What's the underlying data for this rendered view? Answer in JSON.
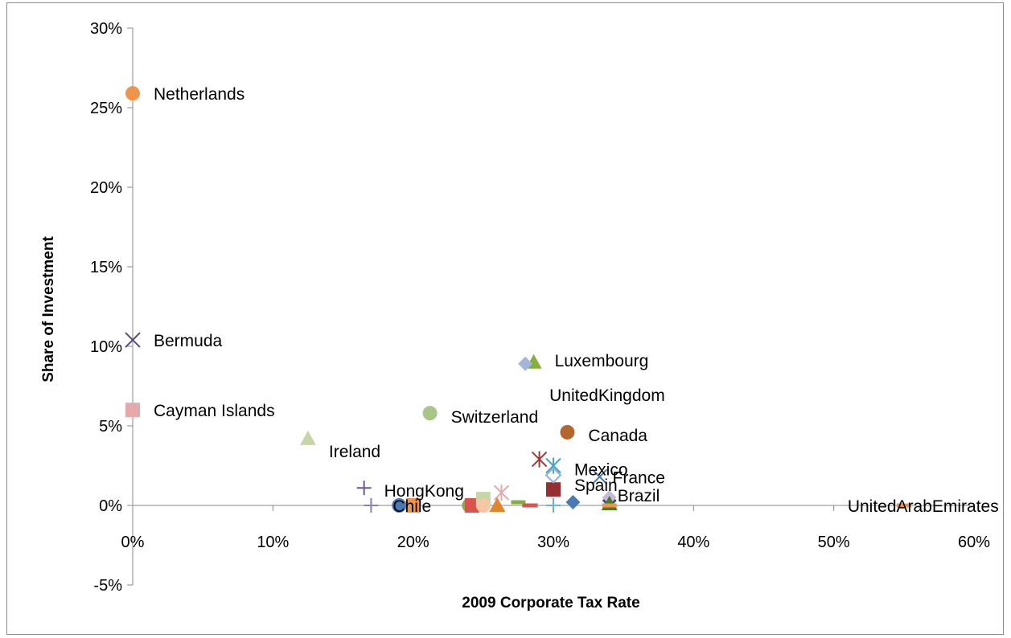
{
  "chart_data": {
    "type": "scatter",
    "title": "",
    "xlabel": "2009 Corporate Tax Rate",
    "ylabel": "Share of Investment",
    "xlim": [
      0,
      0.6
    ],
    "ylim": [
      -0.05,
      0.3
    ],
    "x_ticks": [
      {
        "value": 0,
        "label": "0%"
      },
      {
        "value": 0.1,
        "label": "10%"
      },
      {
        "value": 0.2,
        "label": "20%"
      },
      {
        "value": 0.3,
        "label": "30%"
      },
      {
        "value": 0.4,
        "label": "40%"
      },
      {
        "value": 0.5,
        "label": "50%"
      },
      {
        "value": 0.6,
        "label": "60%"
      }
    ],
    "y_ticks": [
      {
        "value": 0.3,
        "label": "30%"
      },
      {
        "value": 0.25,
        "label": "25%"
      },
      {
        "value": 0.2,
        "label": "20%"
      },
      {
        "value": 0.15,
        "label": "15%"
      },
      {
        "value": 0.1,
        "label": "10%"
      },
      {
        "value": 0.05,
        "label": "5%"
      },
      {
        "value": 0,
        "label": "0%"
      },
      {
        "value": -0.05,
        "label": "-5%"
      }
    ],
    "grid": false,
    "legend": "none",
    "points": [
      {
        "label": "Netherlands",
        "x": 0.0,
        "y": 0.259,
        "marker": "circle",
        "color": "#f0944a"
      },
      {
        "label": "Bermuda",
        "x": 0.0,
        "y": 0.104,
        "marker": "x",
        "color": "#5b4a7a"
      },
      {
        "label": "Cayman Islands",
        "x": 0.0,
        "y": 0.06,
        "marker": "square",
        "color": "#e3a9ab"
      },
      {
        "label": "Ireland",
        "x": 0.125,
        "y": 0.042,
        "marker": "triangle",
        "color": "#c6d7a7"
      },
      {
        "label": "Switzerland",
        "x": 0.212,
        "y": 0.058,
        "marker": "circle",
        "color": "#a8c686"
      },
      {
        "label": "Luxembourg",
        "x": 0.286,
        "y": 0.09,
        "marker": "triangle",
        "color": "#86b03e"
      },
      {
        "label": "UnitedKingdom",
        "x": 0.28,
        "y": 0.089,
        "marker": "diamond",
        "color": "#a3b6d9"
      },
      {
        "label": "Canada",
        "x": 0.31,
        "y": 0.046,
        "marker": "circle",
        "color": "#b5652e"
      },
      {
        "label": "Mexico",
        "x": 0.3,
        "y": 0.025,
        "marker": "asterisk",
        "color": "#4aa3c8"
      },
      {
        "label": "France",
        "x": 0.333,
        "y": 0.018,
        "marker": "x",
        "color": "#4a7ab5"
      },
      {
        "label": "Spain",
        "x": 0.3,
        "y": 0.01,
        "marker": "square",
        "color": "#962f2f"
      },
      {
        "label": "Brazil",
        "x": 0.34,
        "y": 0.003,
        "marker": "diamond",
        "color": "#2a4f7c"
      },
      {
        "label": "HongKong",
        "x": 0.165,
        "y": 0.011,
        "marker": "plus",
        "color": "#6a5a93"
      },
      {
        "label": "Chile",
        "x": 0.17,
        "y": 0.0,
        "marker": "plus",
        "color": "#8b7fb3"
      },
      {
        "label": "UnitedArabEmirates",
        "x": 0.55,
        "y": 0.0,
        "marker": "dash",
        "color": "#f0944a"
      },
      {
        "label": "",
        "x": 0.29,
        "y": 0.029,
        "marker": "asterisk",
        "color": "#9b3c3c"
      },
      {
        "label": "",
        "x": 0.3,
        "y": 0.019,
        "marker": "diamond-open",
        "color": "#93afd6"
      },
      {
        "label": "",
        "x": 0.263,
        "y": 0.008,
        "marker": "asterisk",
        "color": "#e3a9ab"
      },
      {
        "label": "",
        "x": 0.19,
        "y": 0.0,
        "marker": "circle",
        "color": "#4a7ab5"
      },
      {
        "label": "",
        "x": 0.2,
        "y": 0.0,
        "marker": "square",
        "color": "#f0944a"
      },
      {
        "label": "",
        "x": 0.24,
        "y": 0.0,
        "marker": "circle",
        "color": "#86b03e"
      },
      {
        "label": "",
        "x": 0.242,
        "y": 0.0,
        "marker": "square",
        "color": "#d9534f"
      },
      {
        "label": "",
        "x": 0.25,
        "y": 0.004,
        "marker": "square",
        "color": "#c6d7a7"
      },
      {
        "label": "",
        "x": 0.25,
        "y": 0.0,
        "marker": "circle",
        "color": "#f7c6a3"
      },
      {
        "label": "",
        "x": 0.26,
        "y": 0.0,
        "marker": "triangle",
        "color": "#e0862f"
      },
      {
        "label": "",
        "x": 0.275,
        "y": 0.002,
        "marker": "dash",
        "color": "#86b03e"
      },
      {
        "label": "",
        "x": 0.284,
        "y": 0.0,
        "marker": "dash",
        "color": "#9b9b9b"
      },
      {
        "label": "",
        "x": 0.283,
        "y": 0.0,
        "marker": "dash",
        "color": "#d9534f"
      },
      {
        "label": "",
        "x": 0.3,
        "y": 0.0,
        "marker": "plus",
        "color": "#6baed6"
      },
      {
        "label": "",
        "x": 0.314,
        "y": 0.002,
        "marker": "diamond",
        "color": "#4a7ab5"
      },
      {
        "label": "",
        "x": 0.34,
        "y": 0.005,
        "marker": "diamond",
        "color": "#c9b9d9"
      },
      {
        "label": "",
        "x": 0.34,
        "y": 0.001,
        "marker": "triangle",
        "color": "#4a7a2a"
      },
      {
        "label": "",
        "x": 0.34,
        "y": 0.0,
        "marker": "dash",
        "color": "#f0944a"
      }
    ]
  }
}
